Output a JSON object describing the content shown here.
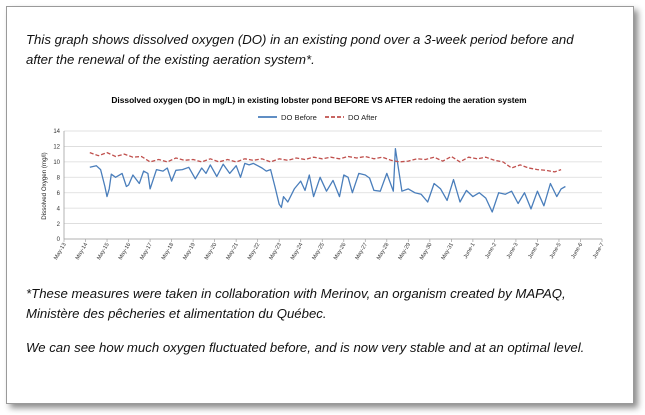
{
  "intro_text": "This graph shows dissolved oxygen (DO) in an existing pond over a 3-week period before and after the renewal of the existing aeration system*.",
  "footnote_text": "*These measures were taken in  collaboration with Merinov, an organism created by MAPAQ, Ministère des pêcheries et alimentation du Québec.",
  "conclusion_text": "We can see how much oxygen fluctuated before, and is now very stable and at an optimal level.",
  "chart_data": {
    "type": "line",
    "title": "Dissolved oxygen (DO in mg/L) in existing lobster pond BEFORE VS AFTER redoing the aeration system",
    "ylabel": "Dissolved Oxygen (mg/l)",
    "xlabel": "",
    "ylim": [
      0,
      14
    ],
    "yticks": [
      "0",
      "2",
      "4",
      "6",
      "8",
      "10",
      "12",
      "14"
    ],
    "grid": "horizontal",
    "legend_position": "top",
    "x_labels": [
      "May-13",
      "May-14",
      "May-15",
      "May-16",
      "May-17",
      "May-18",
      "May-19",
      "May-20",
      "May-21",
      "May-22",
      "May-23",
      "May-24",
      "May-25",
      "May-26",
      "May-27",
      "May-28",
      "May-29",
      "May-30",
      "May-31",
      "June-1",
      "June-2",
      "June-3",
      "June-4",
      "June-5",
      "June-6",
      "June-7"
    ],
    "series": [
      {
        "name": "DO Before",
        "color": "#4a7ebb",
        "style": "solid",
        "x": [
          14.2,
          14.5,
          14.7,
          14.9,
          15.0,
          15.1,
          15.2,
          15.4,
          15.7,
          15.9,
          16.0,
          16.2,
          16.5,
          16.7,
          16.9,
          17.0,
          17.3,
          17.6,
          17.8,
          18.0,
          18.2,
          18.5,
          18.8,
          19.1,
          19.4,
          19.6,
          19.8,
          20.1,
          20.4,
          20.7,
          21.0,
          21.2,
          21.4,
          21.6,
          21.8,
          22.0,
          22.2,
          22.4,
          22.6,
          22.8,
          23.0,
          23.1,
          23.2,
          23.4,
          23.7,
          24.0,
          24.2,
          24.4,
          24.6,
          24.9,
          25.2,
          25.5,
          25.8,
          26.0,
          26.2,
          26.4,
          26.7,
          27.0,
          27.2,
          27.4,
          27.7,
          28.0,
          28.3,
          28.4,
          28.7,
          29.0,
          29.3,
          29.6,
          29.9,
          30.2,
          30.5,
          30.8,
          31.1,
          31.4,
          31.7,
          32.0,
          32.3,
          32.6,
          32.9,
          33.2,
          33.5,
          33.8,
          34.1,
          34.4,
          34.7,
          35.0,
          35.3,
          35.6,
          35.9,
          36.1,
          36.3
        ],
        "y": [
          9.3,
          9.5,
          9.0,
          6.8,
          5.5,
          6.5,
          8.4,
          8.0,
          8.5,
          6.8,
          7.0,
          8.3,
          7.2,
          8.8,
          8.5,
          6.5,
          9.0,
          8.8,
          9.2,
          7.5,
          8.9,
          9.0,
          9.3,
          7.8,
          9.2,
          8.5,
          9.6,
          8.1,
          9.7,
          8.5,
          9.5,
          8.0,
          9.8,
          9.6,
          9.8,
          9.5,
          9.2,
          8.8,
          9.0,
          6.8,
          4.5,
          4.1,
          5.5,
          4.8,
          6.5,
          7.5,
          6.3,
          8.3,
          5.5,
          8.0,
          6.2,
          7.6,
          5.5,
          8.3,
          8.0,
          6.0,
          8.5,
          8.3,
          7.9,
          6.3,
          6.2,
          8.5,
          6.2,
          11.7,
          6.2,
          6.5,
          6.0,
          5.8,
          4.8,
          7.2,
          6.5,
          5.0,
          7.7,
          4.8,
          6.3,
          5.5,
          6.0,
          5.3,
          3.5,
          6.0,
          5.8,
          6.2,
          4.6,
          6.0,
          3.9,
          6.2,
          4.3,
          7.2,
          5.5,
          6.5,
          6.8
        ]
      },
      {
        "name": "DO After",
        "color": "#c0504d",
        "style": "dashed",
        "x": [
          14.2,
          14.6,
          15.0,
          15.4,
          15.8,
          16.2,
          16.6,
          17.0,
          17.4,
          17.8,
          18.2,
          18.6,
          19.0,
          19.4,
          19.8,
          20.2,
          20.6,
          21.0,
          21.4,
          21.8,
          22.2,
          22.6,
          23.0,
          23.4,
          23.8,
          24.2,
          24.6,
          25.0,
          25.4,
          25.8,
          26.2,
          26.6,
          27.0,
          27.4,
          27.8,
          28.2,
          28.6,
          29.0,
          29.4,
          29.8,
          30.2,
          30.6,
          31.0,
          31.4,
          31.8,
          32.2,
          32.6,
          33.0,
          33.4,
          33.8,
          34.2,
          34.6,
          35.0,
          35.4,
          35.8,
          36.1
        ],
        "y": [
          11.2,
          10.8,
          11.2,
          10.7,
          11.0,
          10.6,
          10.7,
          10.0,
          10.3,
          10.0,
          10.5,
          10.2,
          10.3,
          10.0,
          10.4,
          10.0,
          10.3,
          10.0,
          10.4,
          10.2,
          10.4,
          10.0,
          10.4,
          10.2,
          10.5,
          10.3,
          10.6,
          10.4,
          10.6,
          10.4,
          10.7,
          10.5,
          10.7,
          10.4,
          10.6,
          10.2,
          10.0,
          10.1,
          10.4,
          10.3,
          10.6,
          10.1,
          10.7,
          10.0,
          10.6,
          10.4,
          10.6,
          10.2,
          10.0,
          9.2,
          9.6,
          9.2,
          9.0,
          8.9,
          8.7,
          9.0
        ]
      }
    ]
  }
}
